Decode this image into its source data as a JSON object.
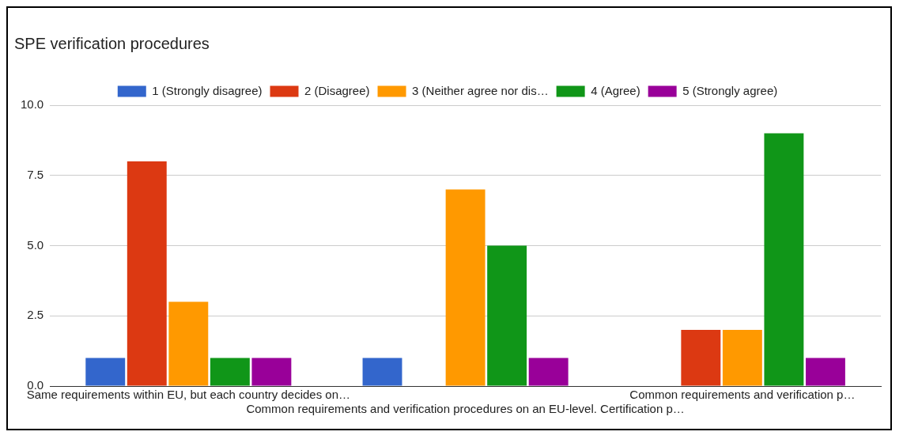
{
  "chart_data": {
    "type": "bar",
    "title": "SPE verification procedures",
    "categories": [
      "Same requirements within EU, but each country decides on…",
      "Common requirements and verification procedures on an EU-level. Certification p…",
      "Common requirements and verification p…"
    ],
    "series": [
      {
        "name": "1 (Strongly disagree)",
        "color": "#3366cc",
        "values": [
          1,
          1,
          0
        ]
      },
      {
        "name": "2 (Disagree)",
        "color": "#dc3912",
        "values": [
          8,
          0,
          2
        ]
      },
      {
        "name": "3 (Neither agree nor dis…",
        "color": "#ff9900",
        "values": [
          3,
          7,
          2
        ]
      },
      {
        "name": "4 (Agree)",
        "color": "#109618",
        "values": [
          1,
          5,
          9
        ]
      },
      {
        "name": "5 (Strongly agree)",
        "color": "#990099",
        "values": [
          1,
          1,
          1
        ]
      }
    ],
    "ylim": [
      0,
      10
    ],
    "yticks": [
      {
        "value": 0,
        "label": "0.0"
      },
      {
        "value": 2.5,
        "label": "2.5"
      },
      {
        "value": 5,
        "label": "5.0"
      },
      {
        "value": 7.5,
        "label": "7.5"
      },
      {
        "value": 10,
        "label": "10.0"
      }
    ],
    "grid": "y",
    "legend": "top"
  }
}
